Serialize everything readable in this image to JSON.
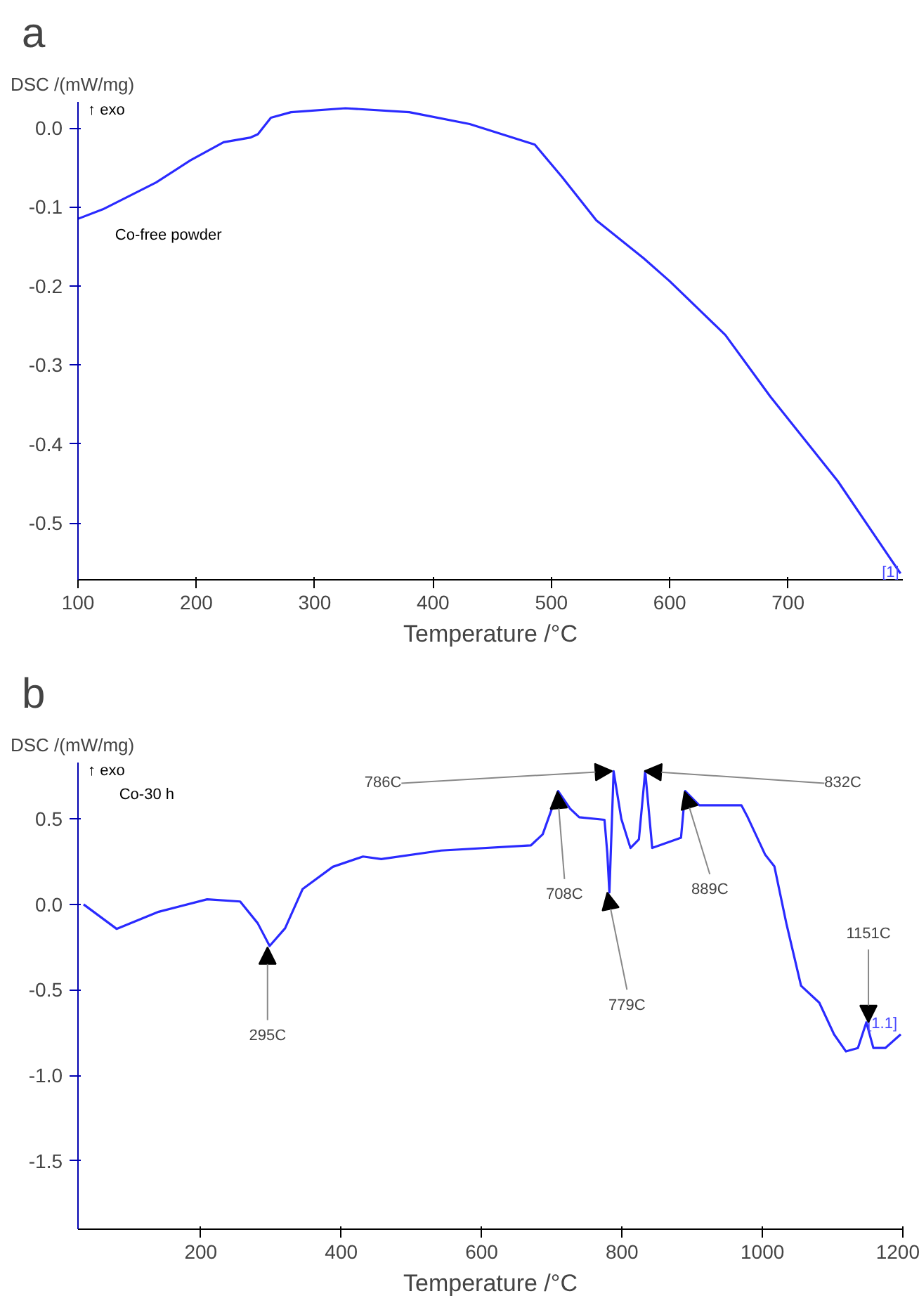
{
  "chart_data": [
    {
      "type": "line",
      "title": "a",
      "xlabel": "Temperature /°C",
      "ylabel": "DSC /(mW/mg)",
      "annotations": [
        "↑ exo",
        "Co-free powder",
        "[1]"
      ],
      "series": [
        {
          "color": "#2a2aff",
          "x": [
            100,
            121,
            166,
            195,
            223,
            246,
            252,
            263,
            280,
            326,
            380,
            431,
            486,
            509,
            538,
            578,
            600,
            647,
            685,
            742,
            795
          ],
          "values": [
            -0.115,
            -0.103,
            -0.069,
            -0.041,
            -0.018,
            -0.012,
            -0.008,
            0.013,
            0.02,
            0.025,
            0.02,
            0.005,
            -0.021,
            -0.062,
            -0.117,
            -0.165,
            -0.194,
            -0.262,
            -0.34,
            -0.447,
            -0.564
          ]
        }
      ],
      "xlim": [
        100,
        797
      ],
      "ylim": [
        -0.572,
        0.033
      ],
      "xticks": [
        100,
        200,
        300,
        400,
        500,
        600,
        700
      ],
      "yticks": [
        {
          "value": 0,
          "label": "0.0"
        },
        -0.1,
        -0.2,
        -0.3,
        -0.4,
        -0.5
      ],
      "grid": false
    },
    {
      "type": "line",
      "title": "b",
      "xlabel": "Temperature /°C",
      "ylabel": "DSC /(mW/mg)",
      "annotations": [
        "↑ exo",
        "Co-30 h",
        "[1.1]",
        {
          "text": "295C",
          "x": 295,
          "y": -0.25
        },
        {
          "text": "708C",
          "x": 708,
          "y": 0.66
        },
        {
          "text": "779C",
          "x": 779,
          "y": 0.07
        },
        {
          "text": "786C",
          "x": 786,
          "y": 0.78
        },
        {
          "text": "832C",
          "x": 832,
          "y": 0.78
        },
        {
          "text": "889C",
          "x": 889,
          "y": 0.66
        },
        {
          "text": "1151C",
          "x": 1151,
          "y": -0.69
        }
      ],
      "series": [
        {
          "color": "#2a2aff",
          "x": [
            33,
            80,
            140,
            209,
            256,
            281,
            298,
            320,
            345,
            388,
            431,
            457,
            542,
            670,
            687,
            709,
            726,
            739,
            775,
            779,
            782,
            788,
            799,
            812,
            824,
            833,
            843,
            884,
            890,
            910,
            970,
            979,
            1004,
            1017,
            1034,
            1055,
            1081,
            1102,
            1119,
            1136,
            1148,
            1158,
            1175,
            1197
          ],
          "values": [
            0.0,
            -0.143,
            -0.043,
            0.03,
            0.017,
            -0.11,
            -0.243,
            -0.14,
            0.09,
            0.22,
            0.28,
            0.265,
            0.315,
            0.345,
            0.41,
            0.663,
            0.56,
            0.51,
            0.495,
            0.3,
            0.07,
            0.779,
            0.5,
            0.33,
            0.38,
            0.779,
            0.33,
            0.39,
            0.663,
            0.58,
            0.58,
            0.51,
            0.29,
            0.223,
            -0.11,
            -0.476,
            -0.575,
            -0.76,
            -0.86,
            -0.84,
            -0.69,
            -0.84,
            -0.84,
            -0.76
          ]
        }
      ],
      "xlim": [
        25,
        1200
      ],
      "ylim": [
        -1.9,
        0.83
      ],
      "xticks": [
        200,
        400,
        600,
        800,
        1000,
        1200
      ],
      "yticks": [
        0.5,
        {
          "value": 0,
          "label": "0.0"
        },
        -0.5,
        {
          "value": -1,
          "label": "-1.0"
        },
        -1.5
      ],
      "grid": false
    }
  ]
}
